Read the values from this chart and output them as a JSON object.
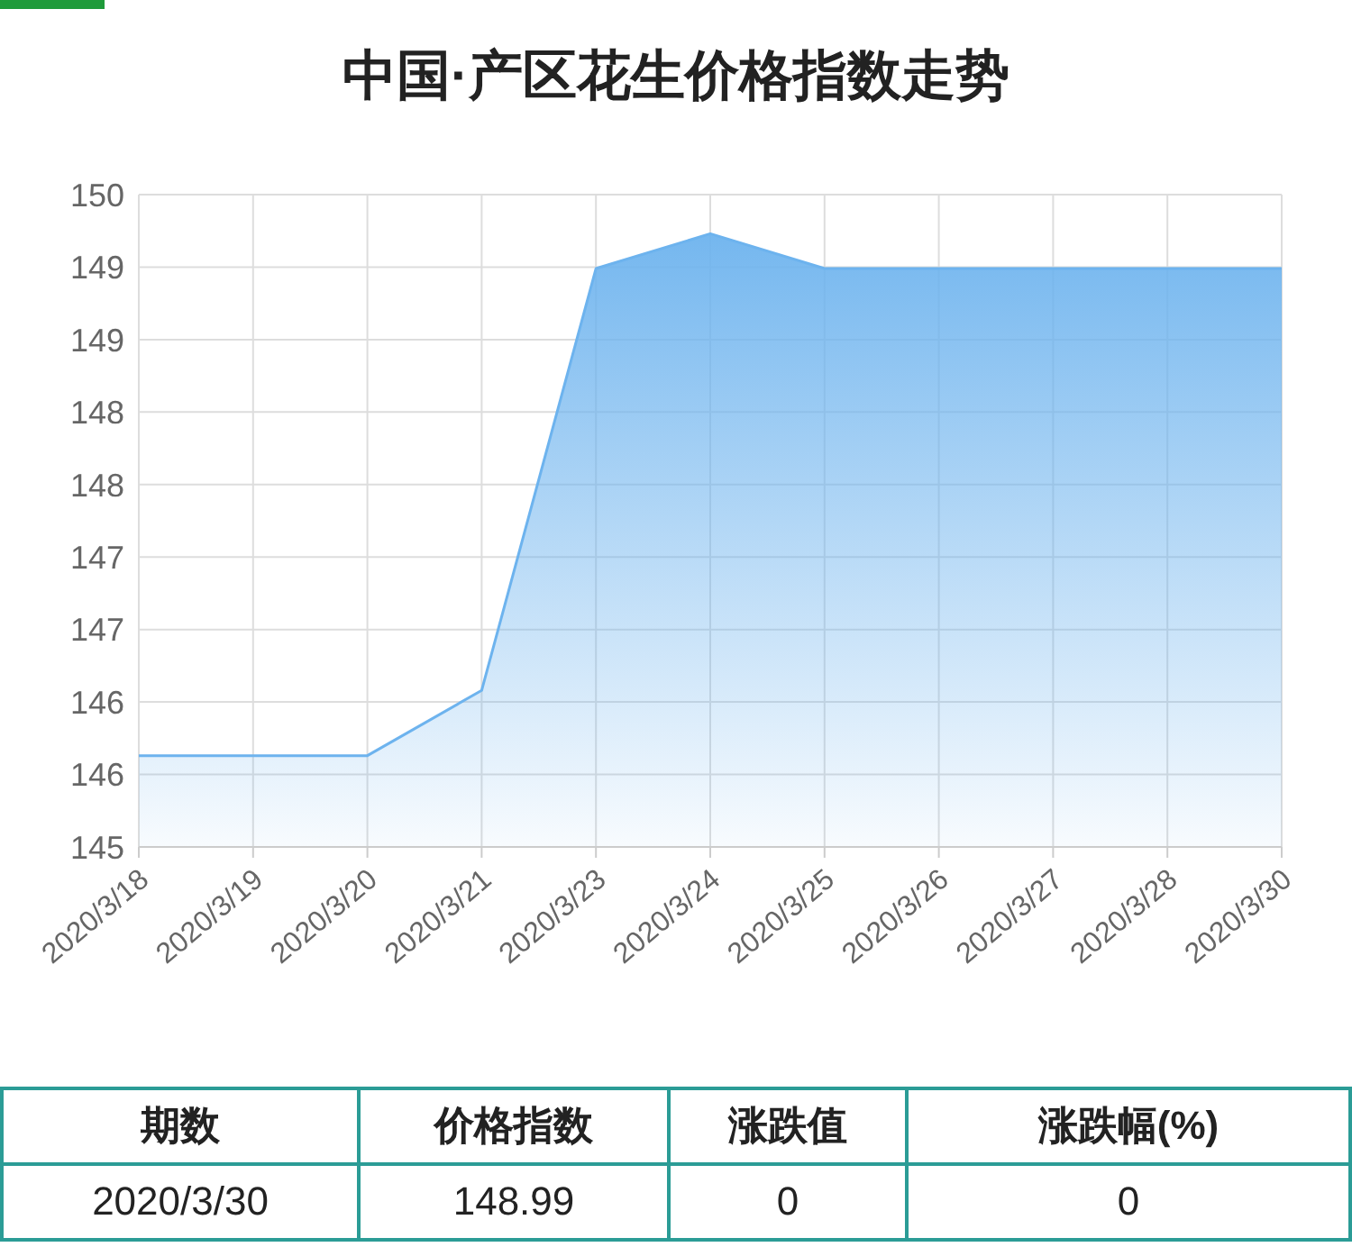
{
  "chart_data": {
    "type": "area",
    "title": "中国·产区花生价格指数走势",
    "categories": [
      "2020/3/18",
      "2020/3/19",
      "2020/3/20",
      "2020/3/21",
      "2020/3/23",
      "2020/3/24",
      "2020/3/25",
      "2020/3/26",
      "2020/3/27",
      "2020/3/28",
      "2020/3/30"
    ],
    "series": [
      {
        "color": "#6db3ee",
        "values": [
          145.63,
          145.63,
          145.63,
          146.08,
          148.99,
          149.23,
          148.99,
          148.99,
          148.99,
          148.99,
          148.99
        ]
      }
    ],
    "ylim": [
      145,
      149.5
    ],
    "yticks": [
      {
        "value": 145,
        "label": "145"
      },
      {
        "value": 145.5,
        "label": "146"
      },
      {
        "value": 146,
        "label": "146"
      },
      {
        "value": 146.5,
        "label": "147"
      },
      {
        "value": 147,
        "label": "147"
      },
      {
        "value": 147.5,
        "label": "148"
      },
      {
        "value": 148,
        "label": "148"
      },
      {
        "value": 148.5,
        "label": "149"
      },
      {
        "value": 149,
        "label": "149"
      },
      {
        "value": 149.5,
        "label": "150"
      }
    ],
    "grid": true,
    "legend": false,
    "marker": "none",
    "line_style": "solid",
    "annotations": [
      "期数",
      "价格指数",
      "涨跌值",
      "涨跌幅(%)",
      "2020/3/30",
      "148.99",
      "0",
      "0"
    ]
  }
}
